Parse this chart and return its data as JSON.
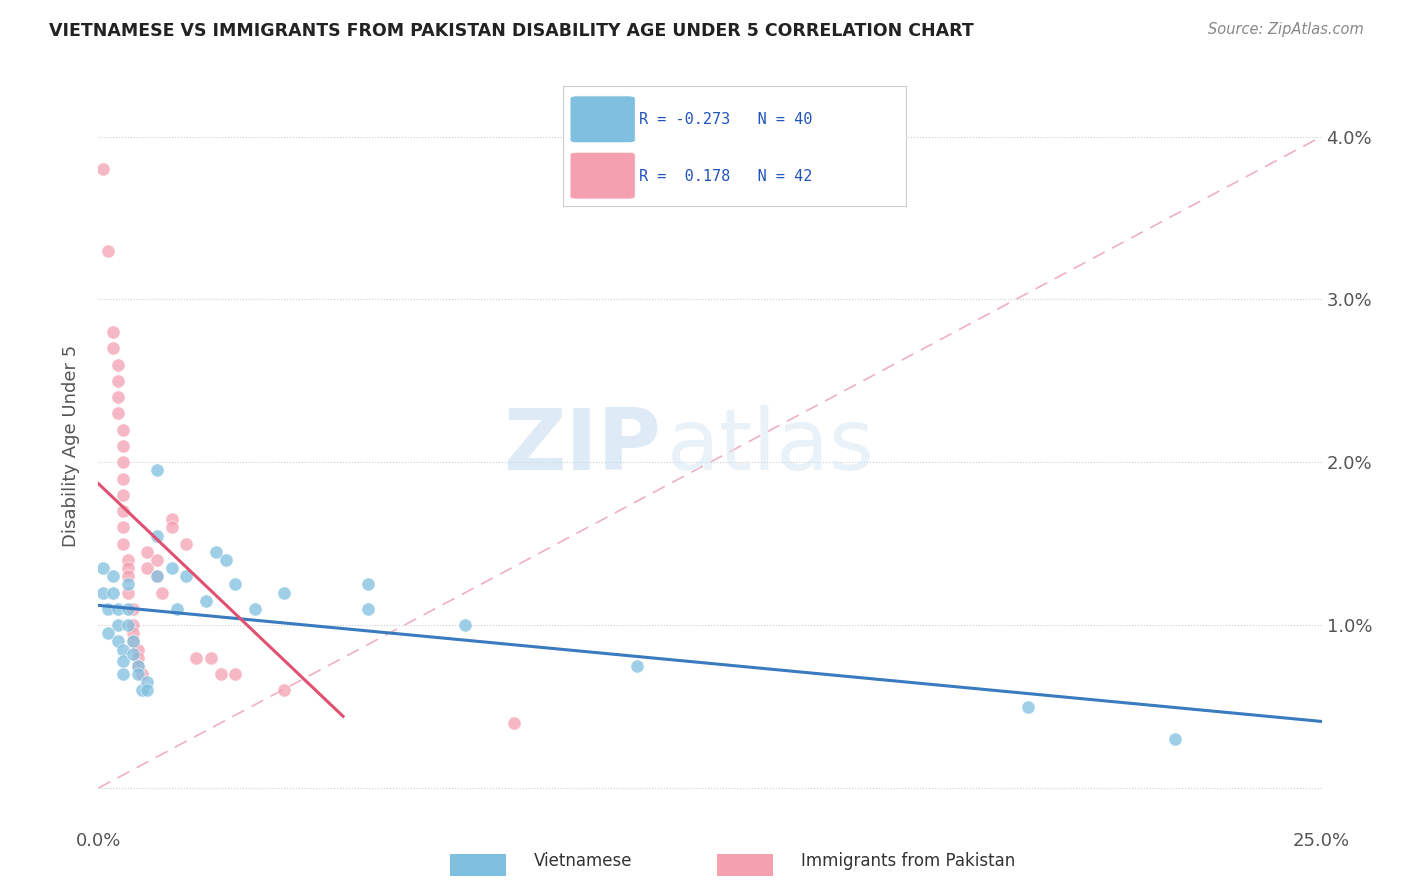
{
  "title": "VIETNAMESE VS IMMIGRANTS FROM PAKISTAN DISABILITY AGE UNDER 5 CORRELATION CHART",
  "source": "Source: ZipAtlas.com",
  "ylabel": "Disability Age Under 5",
  "xlim": [
    0.0,
    0.25
  ],
  "ylim": [
    -0.002,
    0.044
  ],
  "ytick_labels": [
    "",
    "1.0%",
    "2.0%",
    "3.0%",
    "4.0%"
  ],
  "ytick_values": [
    0.0,
    0.01,
    0.02,
    0.03,
    0.04
  ],
  "xtick_labels": [
    "0.0%",
    "25.0%"
  ],
  "xtick_values": [
    0.0,
    0.25
  ],
  "watermark_zip": "ZIP",
  "watermark_atlas": "atlas",
  "blue_color": "#7fbfdf",
  "pink_color": "#f4a0b0",
  "trendline_blue_color": "#3a7abf",
  "trendline_pink_color": "#e05070",
  "diag_color": "#f0b0c0",
  "blue_scatter": [
    [
      0.001,
      0.0135
    ],
    [
      0.001,
      0.012
    ],
    [
      0.002,
      0.011
    ],
    [
      0.002,
      0.0095
    ],
    [
      0.003,
      0.013
    ],
    [
      0.003,
      0.012
    ],
    [
      0.004,
      0.011
    ],
    [
      0.004,
      0.01
    ],
    [
      0.004,
      0.009
    ],
    [
      0.005,
      0.0085
    ],
    [
      0.005,
      0.0078
    ],
    [
      0.005,
      0.007
    ],
    [
      0.006,
      0.0125
    ],
    [
      0.006,
      0.011
    ],
    [
      0.006,
      0.01
    ],
    [
      0.007,
      0.009
    ],
    [
      0.007,
      0.0082
    ],
    [
      0.008,
      0.0075
    ],
    [
      0.008,
      0.007
    ],
    [
      0.009,
      0.006
    ],
    [
      0.01,
      0.0065
    ],
    [
      0.01,
      0.006
    ],
    [
      0.012,
      0.0195
    ],
    [
      0.012,
      0.0155
    ],
    [
      0.012,
      0.013
    ],
    [
      0.015,
      0.0135
    ],
    [
      0.016,
      0.011
    ],
    [
      0.018,
      0.013
    ],
    [
      0.022,
      0.0115
    ],
    [
      0.024,
      0.0145
    ],
    [
      0.026,
      0.014
    ],
    [
      0.028,
      0.0125
    ],
    [
      0.032,
      0.011
    ],
    [
      0.038,
      0.012
    ],
    [
      0.055,
      0.0125
    ],
    [
      0.055,
      0.011
    ],
    [
      0.075,
      0.01
    ],
    [
      0.11,
      0.0075
    ],
    [
      0.19,
      0.005
    ],
    [
      0.22,
      0.003
    ]
  ],
  "pink_scatter": [
    [
      0.001,
      0.038
    ],
    [
      0.002,
      0.033
    ],
    [
      0.003,
      0.028
    ],
    [
      0.003,
      0.027
    ],
    [
      0.004,
      0.026
    ],
    [
      0.004,
      0.025
    ],
    [
      0.004,
      0.024
    ],
    [
      0.004,
      0.023
    ],
    [
      0.005,
      0.022
    ],
    [
      0.005,
      0.021
    ],
    [
      0.005,
      0.02
    ],
    [
      0.005,
      0.019
    ],
    [
      0.005,
      0.018
    ],
    [
      0.005,
      0.017
    ],
    [
      0.005,
      0.016
    ],
    [
      0.005,
      0.015
    ],
    [
      0.006,
      0.014
    ],
    [
      0.006,
      0.0135
    ],
    [
      0.006,
      0.013
    ],
    [
      0.006,
      0.012
    ],
    [
      0.007,
      0.011
    ],
    [
      0.007,
      0.01
    ],
    [
      0.007,
      0.0095
    ],
    [
      0.007,
      0.009
    ],
    [
      0.008,
      0.0085
    ],
    [
      0.008,
      0.008
    ],
    [
      0.008,
      0.0075
    ],
    [
      0.009,
      0.007
    ],
    [
      0.01,
      0.0145
    ],
    [
      0.01,
      0.0135
    ],
    [
      0.012,
      0.014
    ],
    [
      0.012,
      0.013
    ],
    [
      0.013,
      0.012
    ],
    [
      0.015,
      0.0165
    ],
    [
      0.015,
      0.016
    ],
    [
      0.018,
      0.015
    ],
    [
      0.02,
      0.008
    ],
    [
      0.023,
      0.008
    ],
    [
      0.025,
      0.007
    ],
    [
      0.028,
      0.007
    ],
    [
      0.038,
      0.006
    ],
    [
      0.085,
      0.004
    ]
  ]
}
